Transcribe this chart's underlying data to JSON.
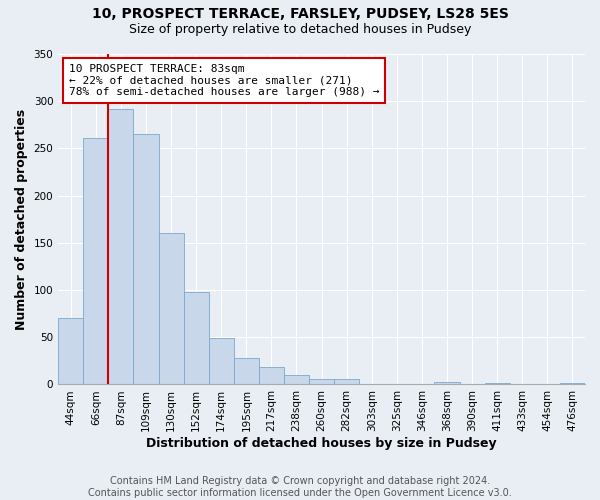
{
  "title": "10, PROSPECT TERRACE, FARSLEY, PUDSEY, LS28 5ES",
  "subtitle": "Size of property relative to detached houses in Pudsey",
  "xlabel": "Distribution of detached houses by size in Pudsey",
  "ylabel": "Number of detached properties",
  "bar_labels": [
    "44sqm",
    "66sqm",
    "87sqm",
    "109sqm",
    "130sqm",
    "152sqm",
    "174sqm",
    "195sqm",
    "217sqm",
    "238sqm",
    "260sqm",
    "282sqm",
    "303sqm",
    "325sqm",
    "346sqm",
    "368sqm",
    "390sqm",
    "411sqm",
    "433sqm",
    "454sqm",
    "476sqm"
  ],
  "bar_values": [
    70,
    261,
    292,
    265,
    160,
    98,
    49,
    28,
    19,
    10,
    6,
    6,
    0,
    0,
    0,
    3,
    0,
    2,
    0,
    0,
    2
  ],
  "bar_color": "#c8d8ea",
  "bar_edge_color": "#7aa8cc",
  "marker_color": "#cc0000",
  "annotation_title": "10 PROSPECT TERRACE: 83sqm",
  "annotation_line1": "← 22% of detached houses are smaller (271)",
  "annotation_line2": "78% of semi-detached houses are larger (988) →",
  "annotation_box_color": "#ffffff",
  "annotation_box_edge": "#cc0000",
  "bg_color": "#e8eef4",
  "plot_bg_color": "#e8eef4",
  "grid_color": "#ffffff",
  "ylim": [
    0,
    350
  ],
  "yticks": [
    0,
    50,
    100,
    150,
    200,
    250,
    300,
    350
  ],
  "title_fontsize": 10,
  "subtitle_fontsize": 9,
  "axis_label_fontsize": 9,
  "tick_fontsize": 7.5,
  "annotation_fontsize": 8,
  "footer_fontsize": 7
}
